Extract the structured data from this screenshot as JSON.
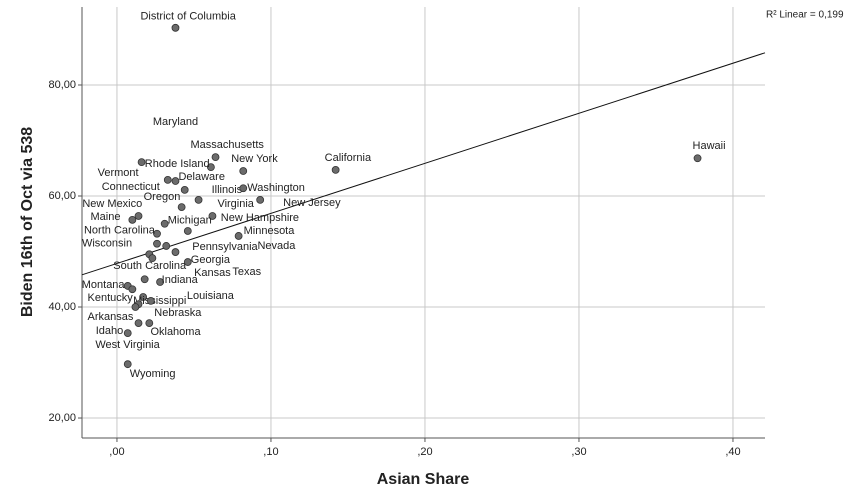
{
  "chart_data": {
    "type": "scatter",
    "x_label": "Asian Share",
    "y_label": "Biden 16th of Oct via 538",
    "annotation": "R² Linear = 0,199",
    "grid": true,
    "color": "#6b6b6b",
    "xlim": [
      -0.0227,
      0.4208
    ],
    "ylim": [
      16.4,
      94.05
    ],
    "xticks": [
      {
        "value": 0,
        "label": ",00"
      },
      {
        "value": 0.1,
        "label": ",10"
      },
      {
        "value": 0.2,
        "label": ",20"
      },
      {
        "value": 0.3,
        "label": ",30"
      },
      {
        "value": 0.4,
        "label": ",40"
      }
    ],
    "yticks": [
      {
        "value": 20,
        "label": "20,00"
      },
      {
        "value": 40,
        "label": "40,00"
      },
      {
        "value": 60,
        "label": "60,00"
      },
      {
        "value": 80,
        "label": "80,00"
      }
    ],
    "point_labels": [
      "District of Columbia",
      "Hawaii",
      "California",
      "Massachusetts",
      "Maryland",
      "Rhode Island",
      "New York",
      "Vermont",
      "Delaware",
      "Connecticut",
      "Illinois",
      "Washington",
      "Oregon",
      "New Jersey",
      "Virginia",
      "New Mexico",
      "Maine",
      "New Hampshire",
      "Michigan",
      "Minnesota",
      "North Carolina",
      "Wisconsin",
      "Pennsylvania",
      "Nevada",
      "Georgia",
      "South Carolina",
      "Kansas",
      "Texas",
      "Indiana",
      "Montana",
      "Mississippi",
      "Kentucky",
      "Louisiana",
      "Arkansas",
      "Nebraska",
      "Oklahoma",
      "Idaho",
      "West Virginia",
      "Wyoming"
    ],
    "x": [
      0.038,
      0.377,
      0.142,
      0.064,
      0.061,
      0.033,
      0.082,
      0.016,
      0.038,
      0.044,
      0.053,
      0.082,
      0.042,
      0.093,
      0.062,
      0.01,
      0.014,
      0.046,
      0.031,
      0.079,
      0.026,
      0.026,
      0.032,
      0.038,
      0.046,
      0.021,
      0.028,
      0.023,
      0.018,
      0.007,
      0.017,
      0.014,
      0.022,
      0.014,
      0.021,
      0.012,
      0.007,
      0.01,
      0.007
    ],
    "values": [
      90.3,
      66.8,
      64.7,
      67.0,
      65.2,
      62.9,
      64.5,
      66.1,
      62.7,
      61.1,
      59.3,
      61.4,
      58.0,
      59.3,
      56.4,
      55.7,
      56.4,
      53.7,
      55.0,
      52.8,
      53.2,
      51.4,
      51.0,
      49.9,
      48.1,
      49.5,
      44.5,
      48.8,
      45.0,
      43.8,
      41.8,
      40.5,
      41.1,
      37.1,
      37.1,
      40.0,
      35.3,
      43.2,
      29.7
    ],
    "fit_line": {
      "x": [
        -0.0227,
        0.4208
      ],
      "y": [
        45.8,
        85.8
      ]
    }
  }
}
